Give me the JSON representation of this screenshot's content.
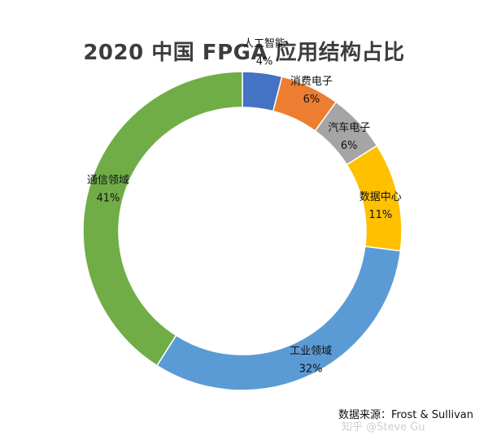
{
  "chart_data": {
    "type": "pie",
    "title": "2020 中国 FPGA 应用结构占比",
    "categories": [
      "人工智能",
      "消费电子",
      "汽车电子",
      "数据中心",
      "工业领域",
      "通信领域"
    ],
    "values": [
      4,
      6,
      6,
      11,
      32,
      41
    ],
    "value_labels": [
      "4%",
      "6%",
      "6%",
      "11%",
      "32%",
      "41%"
    ],
    "colors": [
      "#4472c4",
      "#ed7d31",
      "#a5a5a5",
      "#ffc000",
      "#5b9bd5",
      "#70ad47"
    ],
    "donut": true,
    "legend": "none"
  },
  "source_note": "数据来源：Frost & Sullivan",
  "watermark": "知乎 @Steve Gu"
}
